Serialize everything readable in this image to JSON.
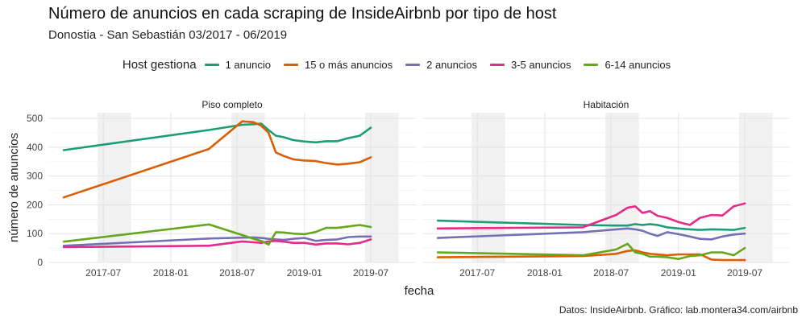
{
  "chart_data": {
    "type": "line",
    "title": "Número de anuncios en cada scraping de InsideAirbnb por tipo de host",
    "subtitle": "Donostia - San Sebastián 03/2017 - 06/2019",
    "xlabel": "fecha",
    "ylabel": "número de anuncios",
    "caption": "Datos: InsideAirbnb. Gráfico: lab.montera34.com/airbnb",
    "legend": {
      "title": "Host gestiona",
      "position": "top"
    },
    "colors": {
      "1 anuncio": "#1b9e77",
      "15 o más anuncios": "#d95f02",
      "2 anuncios": "#7570b3",
      "3-5 anuncios": "#e7298a",
      "6-14 anuncios": "#66a61e"
    },
    "series_order": [
      "1 anuncio",
      "15 o más anuncios",
      "2 anuncios",
      "3-5 anuncios",
      "6-14 anuncios"
    ],
    "x_ticks": [
      "2017-07",
      "2018-01",
      "2018-07",
      "2019-01",
      "2019-07"
    ],
    "y_ticks": [
      0,
      100,
      200,
      300,
      400,
      500
    ],
    "ylim": [
      0,
      520
    ],
    "xlim": [
      "2017-02-01",
      "2019-11-01"
    ],
    "shaded_periods": [
      [
        "2017-06-15",
        "2017-09-15"
      ],
      [
        "2018-06-15",
        "2018-09-15"
      ],
      [
        "2019-06-15",
        "2019-09-15"
      ]
    ],
    "grid": true,
    "panels": [
      {
        "label": "Piso completo",
        "series": [
          {
            "name": "1 anuncio",
            "points": [
              [
                "2017-03-15",
                390
              ],
              [
                "2018-04-15",
                460
              ],
              [
                "2018-07-15",
                478
              ],
              [
                "2018-08-15",
                480
              ],
              [
                "2018-09-05",
                482
              ],
              [
                "2018-09-25",
                460
              ],
              [
                "2018-10-15",
                440
              ],
              [
                "2018-11-05",
                435
              ],
              [
                "2018-12-01",
                425
              ],
              [
                "2019-01-01",
                420
              ],
              [
                "2019-02-01",
                417
              ],
              [
                "2019-03-01",
                421
              ],
              [
                "2019-04-01",
                421
              ],
              [
                "2019-05-01",
                432
              ],
              [
                "2019-06-01",
                440
              ],
              [
                "2019-07-01",
                468
              ]
            ]
          },
          {
            "name": "15 o más anuncios",
            "points": [
              [
                "2017-03-15",
                226
              ],
              [
                "2018-04-15",
                394
              ],
              [
                "2018-07-15",
                490
              ],
              [
                "2018-08-15",
                487
              ],
              [
                "2018-09-05",
                475
              ],
              [
                "2018-09-25",
                450
              ],
              [
                "2018-10-15",
                382
              ],
              [
                "2018-11-05",
                370
              ],
              [
                "2018-12-01",
                358
              ],
              [
                "2019-01-01",
                354
              ],
              [
                "2019-02-01",
                352
              ],
              [
                "2019-03-01",
                345
              ],
              [
                "2019-04-01",
                340
              ],
              [
                "2019-05-01",
                343
              ],
              [
                "2019-06-01",
                348
              ],
              [
                "2019-07-01",
                365
              ]
            ]
          },
          {
            "name": "2 anuncios",
            "points": [
              [
                "2017-03-15",
                58
              ],
              [
                "2018-04-15",
                83
              ],
              [
                "2018-07-15",
                86
              ],
              [
                "2018-08-15",
                87
              ],
              [
                "2018-09-05",
                85
              ],
              [
                "2018-09-25",
                82
              ],
              [
                "2018-10-15",
                80
              ],
              [
                "2018-11-05",
                78
              ],
              [
                "2018-12-01",
                82
              ],
              [
                "2019-01-01",
                85
              ],
              [
                "2019-02-01",
                75
              ],
              [
                "2019-03-01",
                78
              ],
              [
                "2019-04-01",
                80
              ],
              [
                "2019-05-01",
                88
              ],
              [
                "2019-06-01",
                90
              ],
              [
                "2019-07-01",
                90
              ]
            ]
          },
          {
            "name": "3-5 anuncios",
            "points": [
              [
                "2017-03-15",
                53
              ],
              [
                "2018-04-15",
                58
              ],
              [
                "2018-07-15",
                73
              ],
              [
                "2018-08-15",
                70
              ],
              [
                "2018-09-05",
                68
              ],
              [
                "2018-09-25",
                73
              ],
              [
                "2018-10-15",
                75
              ],
              [
                "2018-11-05",
                72
              ],
              [
                "2018-12-01",
                68
              ],
              [
                "2019-01-01",
                68
              ],
              [
                "2019-02-01",
                62
              ],
              [
                "2019-03-01",
                66
              ],
              [
                "2019-04-01",
                66
              ],
              [
                "2019-05-01",
                63
              ],
              [
                "2019-06-01",
                68
              ],
              [
                "2019-07-01",
                80
              ]
            ]
          },
          {
            "name": "6-14 anuncios",
            "points": [
              [
                "2017-03-15",
                72
              ],
              [
                "2018-04-15",
                132
              ],
              [
                "2018-07-15",
                95
              ],
              [
                "2018-08-15",
                82
              ],
              [
                "2018-09-05",
                75
              ],
              [
                "2018-09-25",
                62
              ],
              [
                "2018-10-15",
                105
              ],
              [
                "2018-11-05",
                104
              ],
              [
                "2018-12-01",
                100
              ],
              [
                "2019-01-01",
                98
              ],
              [
                "2019-02-01",
                106
              ],
              [
                "2019-03-01",
                120
              ],
              [
                "2019-04-01",
                120
              ],
              [
                "2019-05-01",
                125
              ],
              [
                "2019-06-01",
                130
              ],
              [
                "2019-07-01",
                123
              ]
            ]
          }
        ]
      },
      {
        "label": "Habitación",
        "series": [
          {
            "name": "1 anuncio",
            "points": [
              [
                "2017-03-15",
                145
              ],
              [
                "2018-04-15",
                130
              ],
              [
                "2018-07-15",
                128
              ],
              [
                "2018-08-15",
                128
              ],
              [
                "2018-09-05",
                133
              ],
              [
                "2018-09-25",
                130
              ],
              [
                "2018-10-15",
                133
              ],
              [
                "2018-11-05",
                130
              ],
              [
                "2018-12-01",
                122
              ],
              [
                "2019-01-01",
                118
              ],
              [
                "2019-02-01",
                115
              ],
              [
                "2019-03-01",
                113
              ],
              [
                "2019-04-01",
                115
              ],
              [
                "2019-05-01",
                114
              ],
              [
                "2019-06-01",
                113
              ],
              [
                "2019-07-01",
                120
              ]
            ]
          },
          {
            "name": "15 o más anuncios",
            "points": [
              [
                "2017-03-15",
                18
              ],
              [
                "2018-04-15",
                22
              ],
              [
                "2018-07-15",
                30
              ],
              [
                "2018-08-15",
                40
              ],
              [
                "2018-09-05",
                42
              ],
              [
                "2018-09-25",
                35
              ],
              [
                "2018-10-15",
                30
              ],
              [
                "2018-11-05",
                28
              ],
              [
                "2018-12-01",
                25
              ],
              [
                "2019-01-01",
                28
              ],
              [
                "2019-02-01",
                28
              ],
              [
                "2019-03-01",
                28
              ],
              [
                "2019-04-01",
                10
              ],
              [
                "2019-05-01",
                8
              ],
              [
                "2019-06-01",
                8
              ],
              [
                "2019-07-01",
                8
              ]
            ]
          },
          {
            "name": "2 anuncios",
            "points": [
              [
                "2017-03-15",
                85
              ],
              [
                "2018-04-15",
                105
              ],
              [
                "2018-07-15",
                115
              ],
              [
                "2018-08-15",
                118
              ],
              [
                "2018-09-05",
                115
              ],
              [
                "2018-09-25",
                110
              ],
              [
                "2018-10-15",
                100
              ],
              [
                "2018-11-05",
                92
              ],
              [
                "2018-12-01",
                105
              ],
              [
                "2019-01-01",
                98
              ],
              [
                "2019-02-01",
                90
              ],
              [
                "2019-03-01",
                82
              ],
              [
                "2019-04-01",
                80
              ],
              [
                "2019-05-01",
                90
              ],
              [
                "2019-06-01",
                97
              ],
              [
                "2019-07-01",
                100
              ]
            ]
          },
          {
            "name": "3-5 anuncios",
            "points": [
              [
                "2017-03-15",
                118
              ],
              [
                "2018-04-15",
                122
              ],
              [
                "2018-07-15",
                165
              ],
              [
                "2018-08-15",
                190
              ],
              [
                "2018-09-05",
                195
              ],
              [
                "2018-09-25",
                172
              ],
              [
                "2018-10-15",
                178
              ],
              [
                "2018-11-05",
                162
              ],
              [
                "2018-12-01",
                155
              ],
              [
                "2019-01-01",
                140
              ],
              [
                "2019-02-01",
                130
              ],
              [
                "2019-03-01",
                155
              ],
              [
                "2019-04-01",
                165
              ],
              [
                "2019-05-01",
                163
              ],
              [
                "2019-06-01",
                195
              ],
              [
                "2019-07-01",
                205
              ]
            ]
          },
          {
            "name": "6-14 anuncios",
            "points": [
              [
                "2017-03-15",
                35
              ],
              [
                "2018-04-15",
                25
              ],
              [
                "2018-07-15",
                45
              ],
              [
                "2018-08-15",
                65
              ],
              [
                "2018-09-05",
                35
              ],
              [
                "2018-09-25",
                30
              ],
              [
                "2018-10-15",
                20
              ],
              [
                "2018-11-05",
                20
              ],
              [
                "2018-12-01",
                18
              ],
              [
                "2019-01-01",
                12
              ],
              [
                "2019-02-01",
                22
              ],
              [
                "2019-03-01",
                25
              ],
              [
                "2019-04-01",
                35
              ],
              [
                "2019-05-01",
                35
              ],
              [
                "2019-06-01",
                25
              ],
              [
                "2019-07-01",
                50
              ]
            ]
          }
        ]
      }
    ]
  }
}
